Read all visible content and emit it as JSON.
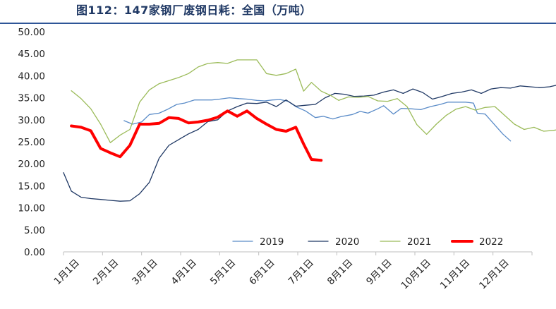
{
  "title": "图112：147家钢厂废钢日耗：全国（万吨）",
  "chart_data": {
    "type": "line",
    "title": "图112：147家钢厂废钢日耗：全国（万吨）",
    "xlabel": "",
    "ylabel": "",
    "ylim": [
      0,
      50
    ],
    "yticks": [
      "0.00",
      "5.00",
      "10.00",
      "15.00",
      "20.00",
      "25.00",
      "30.00",
      "35.00",
      "40.00",
      "45.00",
      "50.00"
    ],
    "xticks": [
      "1月1日",
      "2月1日",
      "3月1日",
      "4月1日",
      "5月1日",
      "6月1日",
      "7月1日",
      "8月1日",
      "9月1日",
      "10月1日",
      "11月1日",
      "12月1日"
    ],
    "grid": false,
    "legend": "bottom-right",
    "series": [
      {
        "name": "2019",
        "color": "#5b8cc8",
        "width": 1.3,
        "points": [
          [
            1.55,
            29.8
          ],
          [
            1.77,
            29.0
          ],
          [
            2.0,
            29.5
          ],
          [
            2.2,
            31.2
          ],
          [
            2.45,
            31.5
          ],
          [
            2.65,
            32.3
          ],
          [
            2.9,
            33.5
          ],
          [
            3.1,
            33.8
          ],
          [
            3.35,
            34.5
          ],
          [
            3.6,
            34.5
          ],
          [
            3.8,
            34.5
          ],
          [
            4.0,
            34.7
          ],
          [
            4.25,
            35.0
          ],
          [
            4.5,
            34.8
          ],
          [
            4.7,
            34.7
          ],
          [
            4.95,
            34.4
          ],
          [
            5.15,
            34.3
          ],
          [
            5.35,
            34.5
          ],
          [
            5.55,
            34.6
          ],
          [
            5.75,
            34.2
          ],
          [
            5.95,
            33.0
          ],
          [
            6.2,
            32.0
          ],
          [
            6.45,
            30.5
          ],
          [
            6.65,
            30.8
          ],
          [
            6.9,
            30.2
          ],
          [
            7.1,
            30.7
          ],
          [
            7.4,
            31.2
          ],
          [
            7.6,
            31.9
          ],
          [
            7.8,
            31.5
          ],
          [
            8.05,
            32.5
          ],
          [
            8.2,
            33.2
          ],
          [
            8.45,
            31.3
          ],
          [
            8.65,
            32.6
          ],
          [
            8.9,
            32.5
          ],
          [
            9.15,
            32.3
          ],
          [
            9.4,
            33.0
          ],
          [
            9.65,
            33.5
          ],
          [
            9.85,
            34.0
          ],
          [
            10.05,
            34.0
          ],
          [
            10.3,
            34.0
          ],
          [
            10.5,
            33.8
          ],
          [
            10.6,
            31.5
          ],
          [
            10.8,
            31.3
          ],
          [
            11.05,
            28.8
          ],
          [
            11.25,
            26.8
          ],
          [
            11.45,
            25.2
          ]
        ]
      },
      {
        "name": "2020",
        "color": "#1f3864",
        "width": 1.3,
        "points": [
          [
            0.0,
            18.0
          ],
          [
            0.2,
            13.8
          ],
          [
            0.45,
            12.4
          ],
          [
            0.7,
            12.1
          ],
          [
            0.95,
            11.9
          ],
          [
            1.2,
            11.7
          ],
          [
            1.45,
            11.5
          ],
          [
            1.7,
            11.6
          ],
          [
            1.95,
            13.2
          ],
          [
            2.2,
            15.8
          ],
          [
            2.45,
            21.3
          ],
          [
            2.7,
            24.2
          ],
          [
            2.95,
            25.5
          ],
          [
            3.2,
            26.8
          ],
          [
            3.45,
            27.8
          ],
          [
            3.7,
            29.6
          ],
          [
            3.95,
            30.0
          ],
          [
            4.2,
            32.0
          ],
          [
            4.45,
            33.0
          ],
          [
            4.7,
            33.8
          ],
          [
            4.95,
            33.7
          ],
          [
            5.2,
            34.0
          ],
          [
            5.45,
            33.0
          ],
          [
            5.7,
            34.5
          ],
          [
            5.95,
            33.1
          ],
          [
            6.2,
            33.3
          ],
          [
            6.45,
            33.5
          ],
          [
            6.7,
            35.0
          ],
          [
            6.95,
            36.0
          ],
          [
            7.2,
            35.8
          ],
          [
            7.45,
            35.3
          ],
          [
            7.7,
            35.4
          ],
          [
            7.95,
            35.6
          ],
          [
            8.2,
            36.3
          ],
          [
            8.45,
            36.8
          ],
          [
            8.7,
            36.0
          ],
          [
            8.95,
            37.0
          ],
          [
            9.2,
            36.2
          ],
          [
            9.45,
            34.7
          ],
          [
            9.7,
            35.3
          ],
          [
            9.95,
            36.0
          ],
          [
            10.2,
            36.3
          ],
          [
            10.45,
            36.8
          ],
          [
            10.7,
            36.0
          ],
          [
            10.95,
            37.0
          ],
          [
            11.2,
            37.3
          ],
          [
            11.45,
            37.2
          ],
          [
            11.7,
            37.7
          ],
          [
            11.95,
            37.5
          ],
          [
            12.2,
            37.3
          ],
          [
            12.45,
            37.5
          ],
          [
            12.7,
            38.0
          ],
          [
            12.9,
            38.0
          ]
        ]
      },
      {
        "name": "2021",
        "color": "#9bbb59",
        "width": 1.3,
        "points": [
          [
            0.2,
            36.6
          ],
          [
            0.45,
            34.8
          ],
          [
            0.7,
            32.5
          ],
          [
            0.95,
            29.0
          ],
          [
            1.2,
            24.8
          ],
          [
            1.45,
            26.5
          ],
          [
            1.7,
            27.8
          ],
          [
            1.95,
            34.0
          ],
          [
            2.2,
            36.8
          ],
          [
            2.45,
            38.2
          ],
          [
            2.7,
            38.9
          ],
          [
            2.95,
            39.6
          ],
          [
            3.2,
            40.5
          ],
          [
            3.45,
            42.0
          ],
          [
            3.7,
            42.8
          ],
          [
            3.95,
            43.0
          ],
          [
            4.2,
            42.8
          ],
          [
            4.45,
            43.6
          ],
          [
            4.7,
            43.6
          ],
          [
            4.95,
            43.6
          ],
          [
            5.2,
            40.5
          ],
          [
            5.45,
            40.1
          ],
          [
            5.7,
            40.5
          ],
          [
            5.95,
            41.5
          ],
          [
            6.15,
            36.5
          ],
          [
            6.35,
            38.5
          ],
          [
            6.6,
            36.5
          ],
          [
            6.85,
            35.5
          ],
          [
            7.05,
            34.4
          ],
          [
            7.3,
            35.2
          ],
          [
            7.55,
            35.1
          ],
          [
            7.8,
            35.3
          ],
          [
            8.05,
            34.3
          ],
          [
            8.3,
            34.2
          ],
          [
            8.55,
            34.8
          ],
          [
            8.8,
            33.0
          ],
          [
            9.05,
            28.9
          ],
          [
            9.3,
            26.7
          ],
          [
            9.55,
            29.0
          ],
          [
            9.8,
            31.0
          ],
          [
            10.05,
            32.4
          ],
          [
            10.3,
            33.0
          ],
          [
            10.55,
            32.2
          ],
          [
            10.8,
            32.8
          ],
          [
            11.05,
            33.0
          ],
          [
            11.3,
            31.0
          ],
          [
            11.55,
            29.0
          ],
          [
            11.8,
            27.8
          ],
          [
            12.05,
            28.3
          ],
          [
            12.3,
            27.4
          ],
          [
            12.55,
            27.6
          ],
          [
            12.8,
            28.0
          ],
          [
            13.0,
            28.5
          ]
        ]
      },
      {
        "name": "2022",
        "color": "#ff0000",
        "width": 4,
        "points": [
          [
            0.2,
            28.6
          ],
          [
            0.45,
            28.3
          ],
          [
            0.7,
            27.5
          ],
          [
            0.95,
            23.5
          ],
          [
            1.2,
            22.5
          ],
          [
            1.45,
            21.6
          ],
          [
            1.7,
            24.2
          ],
          [
            1.95,
            29.0
          ],
          [
            2.2,
            29.0
          ],
          [
            2.45,
            29.2
          ],
          [
            2.7,
            30.5
          ],
          [
            2.95,
            30.3
          ],
          [
            3.2,
            29.3
          ],
          [
            3.45,
            29.5
          ],
          [
            3.7,
            29.9
          ],
          [
            3.95,
            30.6
          ],
          [
            4.2,
            32.0
          ],
          [
            4.45,
            30.8
          ],
          [
            4.7,
            32.0
          ],
          [
            4.95,
            30.3
          ],
          [
            5.2,
            29.0
          ],
          [
            5.45,
            27.8
          ],
          [
            5.7,
            27.4
          ],
          [
            5.95,
            28.3
          ],
          [
            6.15,
            24.5
          ],
          [
            6.35,
            21.0
          ],
          [
            6.6,
            20.8
          ]
        ]
      }
    ]
  }
}
